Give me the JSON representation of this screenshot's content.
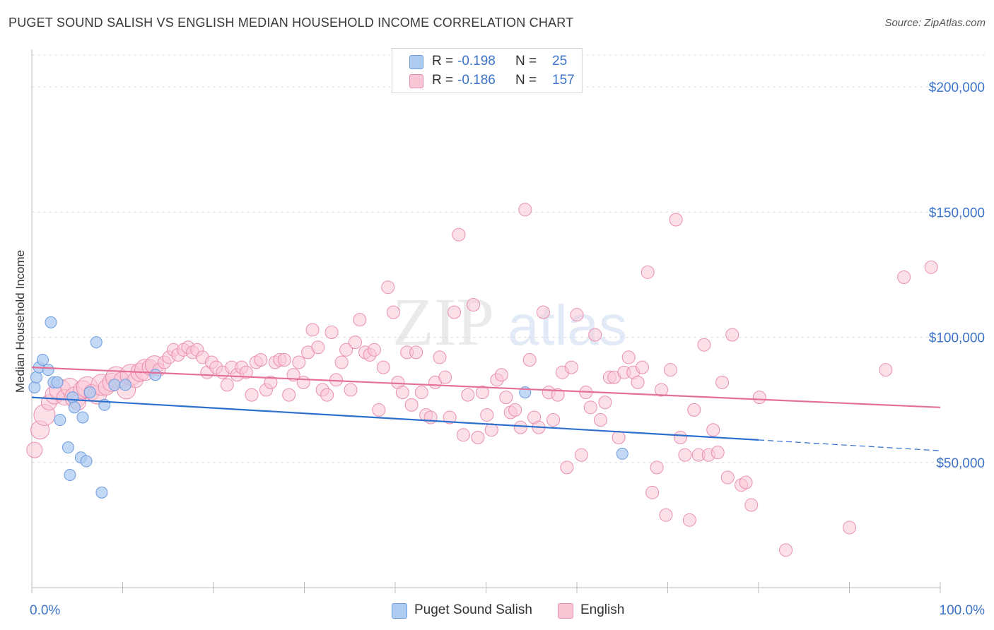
{
  "title": "PUGET SOUND SALISH VS ENGLISH MEDIAN HOUSEHOLD INCOME CORRELATION CHART",
  "source": "Source: ZipAtlas.com",
  "watermark": {
    "zip": "ZIP",
    "atlas": "atlas"
  },
  "legend": {
    "rows": [
      {
        "r_label": "R =",
        "r_value": "-0.198",
        "n_label": "N =",
        "n_value": "25",
        "color": "#aecbf0",
        "stroke": "#6d9be0"
      },
      {
        "r_label": "R =",
        "r_value": "-0.186",
        "n_label": "N =",
        "n_value": "157",
        "color": "#f9c6d6",
        "stroke": "#e98fae"
      }
    ]
  },
  "bottom_legend": [
    {
      "label": "Puget Sound Salish",
      "color": "#aecbf0",
      "stroke": "#6d9be0"
    },
    {
      "label": "English",
      "color": "#f9c6d6",
      "stroke": "#e98fae"
    }
  ],
  "chart_data": {
    "type": "scatter",
    "title": "PUGET SOUND SALISH VS ENGLISH MEDIAN HOUSEHOLD INCOME CORRELATION CHART",
    "xlabel": "",
    "ylabel": "Median Household Income",
    "xlim": [
      0,
      100
    ],
    "ylim": [
      0,
      215000
    ],
    "x_tick_labels": [
      "0.0%",
      "100.0%"
    ],
    "y_ticks": [
      {
        "value": 50000,
        "label": "$50,000"
      },
      {
        "value": 100000,
        "label": "$100,000"
      },
      {
        "value": 150000,
        "label": "$150,000"
      },
      {
        "value": 200000,
        "label": "$200,000"
      }
    ],
    "grid": "horizontal dashed",
    "legend_position": "top-center",
    "series": [
      {
        "name": "Puget Sound Salish",
        "color": "#6d9be0",
        "fill": "#aecbf0",
        "trend": {
          "x0": 0,
          "y0": 76000,
          "x1": 80,
          "y1": 59000,
          "dashed_to_x": 100,
          "dashed_to_y": 54700,
          "color": "#2d6fcc"
        },
        "points": [
          [
            0.3,
            80000
          ],
          [
            0.5,
            84000
          ],
          [
            0.8,
            88000
          ],
          [
            1.2,
            91000
          ],
          [
            1.8,
            87000
          ],
          [
            2.1,
            106000
          ],
          [
            2.4,
            82000
          ],
          [
            2.8,
            82000
          ],
          [
            3.1,
            67000
          ],
          [
            4,
            56000
          ],
          [
            4.2,
            45000
          ],
          [
            4.5,
            76000
          ],
          [
            4.7,
            72000
          ],
          [
            5.6,
            68000
          ],
          [
            5.4,
            52000
          ],
          [
            6,
            50500
          ],
          [
            6.4,
            78000
          ],
          [
            7.1,
            98000
          ],
          [
            7.7,
            38000
          ],
          [
            8,
            73000
          ],
          [
            9.1,
            81000
          ],
          [
            10.3,
            81000
          ],
          [
            13.6,
            85000
          ],
          [
            54.3,
            78000
          ],
          [
            65,
            53500
          ]
        ]
      },
      {
        "name": "English",
        "color": "#e98fae",
        "fill": "#f9c6d6",
        "trend": {
          "x0": 0,
          "y0": 88000,
          "x1": 100,
          "y1": 72000,
          "color": "#e4709a"
        },
        "points": [
          [
            0.3,
            55000
          ],
          [
            0.9,
            63000
          ],
          [
            1.4,
            69000
          ],
          [
            1.9,
            74000
          ],
          [
            2.5,
            77000
          ],
          [
            3.1,
            79000
          ],
          [
            3.6,
            76000
          ],
          [
            4.2,
            80000
          ],
          [
            4.8,
            76000
          ],
          [
            5.1,
            74000
          ],
          [
            5.6,
            79000
          ],
          [
            6.1,
            80000
          ],
          [
            6.6,
            78000
          ],
          [
            7.2,
            77000
          ],
          [
            7.7,
            81000
          ],
          [
            8.2,
            80000
          ],
          [
            8.8,
            82000
          ],
          [
            9.3,
            84000
          ],
          [
            9.9,
            83000
          ],
          [
            10.4,
            79000
          ],
          [
            10.9,
            85000
          ],
          [
            11.4,
            83000
          ],
          [
            11.9,
            86000
          ],
          [
            12.5,
            87000
          ],
          [
            13.0,
            88000
          ],
          [
            13.5,
            89000
          ],
          [
            14.0,
            87000
          ],
          [
            14.6,
            90000
          ],
          [
            15.1,
            92000
          ],
          [
            15.6,
            95000
          ],
          [
            16.1,
            93000
          ],
          [
            16.7,
            95000
          ],
          [
            17.2,
            96000
          ],
          [
            17.7,
            94000
          ],
          [
            18.2,
            95000
          ],
          [
            18.8,
            92000
          ],
          [
            19.3,
            86000
          ],
          [
            19.8,
            90000
          ],
          [
            20.3,
            88000
          ],
          [
            21.0,
            86000
          ],
          [
            21.5,
            81000
          ],
          [
            22.0,
            88000
          ],
          [
            22.6,
            85000
          ],
          [
            23.1,
            88000
          ],
          [
            23.6,
            86000
          ],
          [
            24.2,
            77000
          ],
          [
            24.7,
            90000
          ],
          [
            25.2,
            91000
          ],
          [
            25.8,
            79000
          ],
          [
            26.3,
            82000
          ],
          [
            26.8,
            90000
          ],
          [
            27.3,
            91000
          ],
          [
            27.8,
            91000
          ],
          [
            28.3,
            77000
          ],
          [
            28.8,
            85000
          ],
          [
            29.4,
            90000
          ],
          [
            29.9,
            82000
          ],
          [
            30.4,
            94000
          ],
          [
            30.9,
            103000
          ],
          [
            31.5,
            96000
          ],
          [
            32.0,
            79000
          ],
          [
            32.5,
            77000
          ],
          [
            33.0,
            102000
          ],
          [
            33.5,
            83000
          ],
          [
            34.1,
            90000
          ],
          [
            34.6,
            95000
          ],
          [
            35.1,
            79000
          ],
          [
            35.6,
            98000
          ],
          [
            36.1,
            107000
          ],
          [
            36.7,
            94000
          ],
          [
            37.2,
            93000
          ],
          [
            37.7,
            95000
          ],
          [
            38.2,
            71000
          ],
          [
            38.7,
            88000
          ],
          [
            39.2,
            120000
          ],
          [
            39.8,
            110000
          ],
          [
            40.3,
            82000
          ],
          [
            40.8,
            78000
          ],
          [
            41.3,
            94000
          ],
          [
            41.8,
            73000
          ],
          [
            42.3,
            94000
          ],
          [
            42.9,
            78000
          ],
          [
            43.4,
            69000
          ],
          [
            43.9,
            68000
          ],
          [
            44.4,
            82000
          ],
          [
            44.9,
            92000
          ],
          [
            45.5,
            84000
          ],
          [
            46.0,
            68000
          ],
          [
            46.5,
            110000
          ],
          [
            47.0,
            141000
          ],
          [
            47.5,
            61000
          ],
          [
            48.0,
            77000
          ],
          [
            48.6,
            113000
          ],
          [
            49.1,
            60000
          ],
          [
            49.6,
            78000
          ],
          [
            50.1,
            69000
          ],
          [
            50.6,
            63000
          ],
          [
            51.2,
            83000
          ],
          [
            51.7,
            85000
          ],
          [
            52.2,
            76000
          ],
          [
            52.7,
            70000
          ],
          [
            53.2,
            71000
          ],
          [
            53.8,
            64000
          ],
          [
            54.3,
            151000
          ],
          [
            54.8,
            91000
          ],
          [
            55.3,
            68000
          ],
          [
            55.8,
            64000
          ],
          [
            56.3,
            110000
          ],
          [
            56.9,
            78000
          ],
          [
            57.4,
            67000
          ],
          [
            57.9,
            77000
          ],
          [
            58.4,
            86000
          ],
          [
            58.9,
            48000
          ],
          [
            59.4,
            88000
          ],
          [
            60.0,
            109000
          ],
          [
            60.5,
            53000
          ],
          [
            61.0,
            78000
          ],
          [
            61.5,
            72000
          ],
          [
            62.0,
            101000
          ],
          [
            62.6,
            67000
          ],
          [
            63.1,
            74000
          ],
          [
            63.6,
            84000
          ],
          [
            64.1,
            84000
          ],
          [
            64.6,
            60000
          ],
          [
            65.2,
            86000
          ],
          [
            65.7,
            92000
          ],
          [
            66.2,
            86000
          ],
          [
            66.7,
            82000
          ],
          [
            67.2,
            88000
          ],
          [
            67.8,
            126000
          ],
          [
            68.3,
            38000
          ],
          [
            68.8,
            48000
          ],
          [
            69.3,
            79000
          ],
          [
            69.8,
            29000
          ],
          [
            70.3,
            87000
          ],
          [
            70.9,
            147000
          ],
          [
            71.4,
            60000
          ],
          [
            71.9,
            53000
          ],
          [
            72.4,
            27000
          ],
          [
            72.9,
            71000
          ],
          [
            73.4,
            53000
          ],
          [
            74.0,
            97000
          ],
          [
            74.5,
            53000
          ],
          [
            75.0,
            63000
          ],
          [
            75.5,
            54000
          ],
          [
            76.0,
            82000
          ],
          [
            76.6,
            44000
          ],
          [
            77.1,
            101000
          ],
          [
            78.1,
            41000
          ],
          [
            78.6,
            42000
          ],
          [
            79.2,
            33000
          ],
          [
            80.1,
            76000
          ],
          [
            83.0,
            15000
          ],
          [
            90.0,
            24000
          ],
          [
            94.0,
            87000
          ],
          [
            96.0,
            124000
          ],
          [
            99.0,
            128000
          ]
        ]
      }
    ]
  }
}
